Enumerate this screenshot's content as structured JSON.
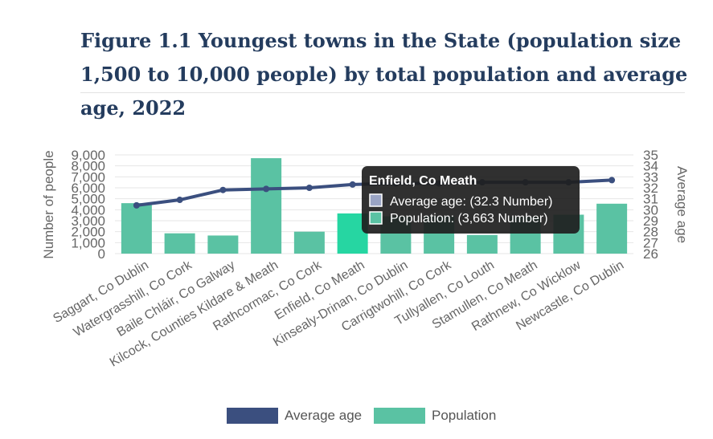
{
  "title": "Figure 1.1 Youngest towns in the State (population size 1,500 to 10,000 people) by total population and average age, 2022",
  "colors": {
    "population": "#5ac2a3",
    "population_highlight": "#26d6a2",
    "average_age": "#3b4f7f",
    "grid": "#e6e6e6",
    "axis_text": "#666666",
    "tooltip_bg": "#1e1e1e"
  },
  "chart_data": {
    "type": "bar",
    "categories": [
      "Saggart, Co Dublin",
      "Watergrasshill, Co Cork",
      "Baile Chláir, Co Galway",
      "Kilcock, Counties Kildare & Meath",
      "Rathcormac, Co Cork",
      "Enfield, Co Meath",
      "Kinsealy-Drinan, Co Dublin",
      "Carrigtwohill, Co Cork",
      "Tullyallen, Co Louth",
      "Stamullen, Co Meath",
      "Rathnew, Co Wicklow",
      "Newcastle, Co Dublin"
    ],
    "series": [
      {
        "name": "Population",
        "type": "bar",
        "axis": "left",
        "values": [
          4600,
          1850,
          1650,
          8700,
          2000,
          3663,
          3400,
          3400,
          1700,
          3350,
          3550,
          4550
        ]
      },
      {
        "name": "Average age",
        "type": "line",
        "axis": "right",
        "values": [
          30.4,
          30.9,
          31.8,
          31.9,
          32.0,
          32.3,
          32.4,
          32.4,
          32.5,
          32.5,
          32.5,
          32.7
        ]
      }
    ],
    "ylabel": "Number of people",
    "y2label": "Average age",
    "ylim": [
      0,
      9000
    ],
    "y2lim": [
      26,
      35
    ],
    "yticks": [
      "0",
      "1,000",
      "2,000",
      "3,000",
      "4,000",
      "5,000",
      "6,000",
      "7,000",
      "8,000",
      "9,000"
    ],
    "y2ticks": [
      "26",
      "27",
      "28",
      "29",
      "30",
      "31",
      "32",
      "33",
      "34",
      "35"
    ],
    "grid": true,
    "legend_position": "bottom"
  },
  "tooltip": {
    "title": "Enfield, Co Meath",
    "line1": "Average age: (32.3 Number)",
    "line2": "Population: (3,663 Number)"
  },
  "legend": {
    "average_age": "Average age",
    "population": "Population"
  }
}
